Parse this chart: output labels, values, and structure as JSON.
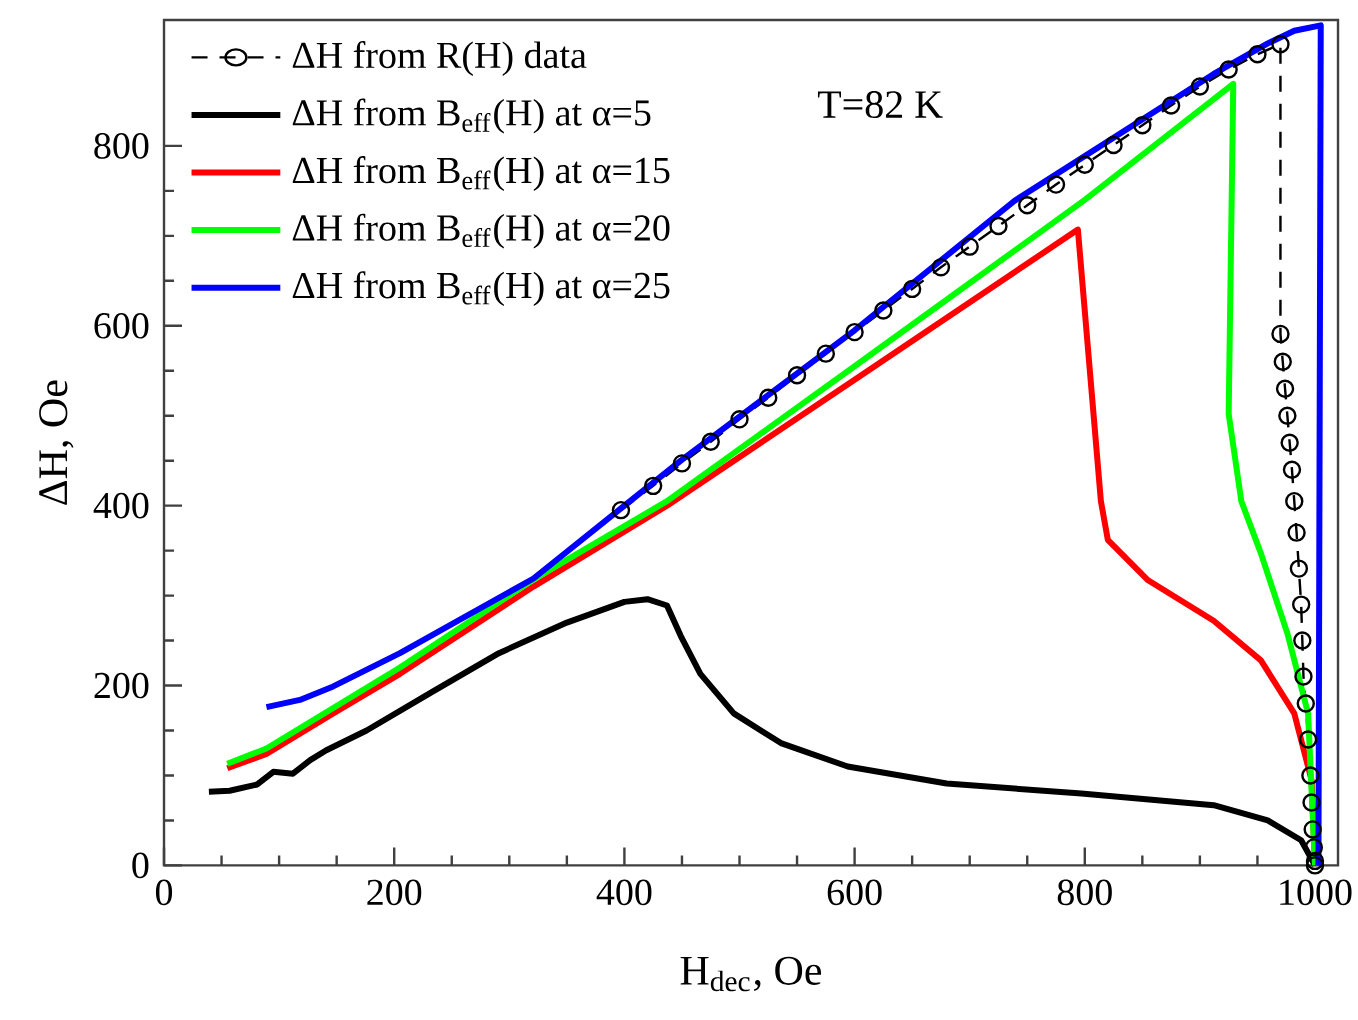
{
  "chart_data": {
    "type": "line",
    "xlabel": "H$_{dec}$, Oe",
    "ylabel": "ΔH, Oe",
    "xlim": [
      0,
      1020
    ],
    "ylim": [
      0,
      940
    ],
    "xticks": [
      0,
      200,
      400,
      600,
      800,
      1000
    ],
    "yticks": [
      0,
      200,
      400,
      600,
      800
    ],
    "legend": "top left",
    "marker": "none",
    "line_style": "solid",
    "annotations": [
      "T=82 K"
    ],
    "series": [
      {
        "name": "ΔH from R(H) data",
        "color": "#000000",
        "marker": "circle",
        "line_style": "dashed",
        "x": [
          397,
          425,
          450,
          475,
          500,
          525,
          550,
          575,
          600,
          625,
          650,
          675,
          700,
          725,
          750,
          775,
          800,
          825,
          850,
          875,
          900,
          925,
          950,
          970,
          970,
          972,
          974,
          976,
          978,
          980,
          982,
          984,
          986,
          988,
          989,
          990,
          992,
          994,
          996,
          997,
          998,
          999,
          1000,
          1000
        ],
        "values": [
          395,
          422,
          447,
          471,
          496,
          520,
          545,
          569,
          593,
          617,
          641,
          665,
          688,
          711,
          734,
          757,
          779,
          801,
          823,
          845,
          866,
          885,
          902,
          913,
          591,
          560,
          530,
          500,
          470,
          440,
          405,
          370,
          330,
          290,
          250,
          210,
          180,
          140,
          100,
          70,
          40,
          20,
          5,
          0
        ]
      },
      {
        "name": "ΔH from B$_{eff}$(H) at α=5",
        "color": "#000000",
        "x": [
          39,
          57,
          81,
          95,
          112,
          127,
          141,
          176,
          233,
          291,
          350,
          400,
          420,
          437,
          449,
          466,
          495,
          536,
          594,
          680,
          797,
          912,
          959,
          988,
          1000
        ],
        "values": [
          82,
          83,
          90,
          104,
          102,
          117,
          128,
          150,
          193,
          236,
          270,
          293,
          296,
          289,
          255,
          213,
          169,
          136,
          110,
          91,
          80,
          67,
          50,
          28,
          0
        ]
      },
      {
        "name": "ΔH from B$_{eff}$(H) at α=15",
        "color": "#ff0000",
        "x": [
          55,
          89,
          147,
          205,
          321,
          437,
          600,
          794,
          814,
          820,
          855,
          912,
          953,
          982,
          997,
          1000
        ],
        "values": [
          108,
          124,
          169,
          213,
          310,
          400,
          540,
          707,
          405,
          362,
          317,
          272,
          228,
          169,
          95,
          0
        ]
      },
      {
        "name": "ΔH from B$_{eff}$(H) at α=20",
        "color": "#00ff00",
        "x": [
          55,
          89,
          147,
          205,
          321,
          437,
          600,
          800,
          929,
          925,
          936,
          953,
          976,
          994,
          1000
        ],
        "values": [
          113,
          130,
          175,
          220,
          318,
          405,
          555,
          740,
          869,
          502,
          405,
          347,
          258,
          169,
          0
        ]
      },
      {
        "name": "ΔH from B$_{eff}$(H) at α=25",
        "color": "#0000ff",
        "x": [
          89,
          118,
          147,
          205,
          321,
          400,
          449,
          600,
          739,
          912,
          959,
          982,
          1005,
          1003
        ],
        "values": [
          176,
          184,
          199,
          236,
          319,
          400,
          450,
          595,
          739,
          880,
          914,
          928,
          934,
          0
        ]
      }
    ]
  }
}
